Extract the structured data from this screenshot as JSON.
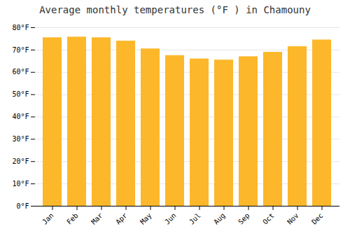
{
  "chart_data": {
    "type": "bar",
    "title": "Average monthly temperatures (°F ) in Chamouny",
    "categories": [
      "Jan",
      "Feb",
      "Mar",
      "Apr",
      "May",
      "Jun",
      "Jul",
      "Aug",
      "Sep",
      "Oct",
      "Nov",
      "Dec"
    ],
    "values": [
      75.5,
      75.8,
      75.5,
      74.0,
      70.5,
      67.5,
      66.0,
      65.5,
      67.0,
      69.0,
      71.5,
      74.5
    ],
    "color": "#FDB72A",
    "ylim": [
      0,
      80
    ],
    "yticks": [
      {
        "value": 0,
        "label": "0°F"
      },
      {
        "value": 10,
        "label": "10°F"
      },
      {
        "value": 20,
        "label": "20°F"
      },
      {
        "value": 30,
        "label": "30°F"
      },
      {
        "value": 40,
        "label": "40°F"
      },
      {
        "value": 50,
        "label": "50°F"
      },
      {
        "value": 60,
        "label": "60°F"
      },
      {
        "value": 70,
        "label": "70°F"
      },
      {
        "value": 80,
        "label": "80°F"
      }
    ],
    "grid": true
  }
}
